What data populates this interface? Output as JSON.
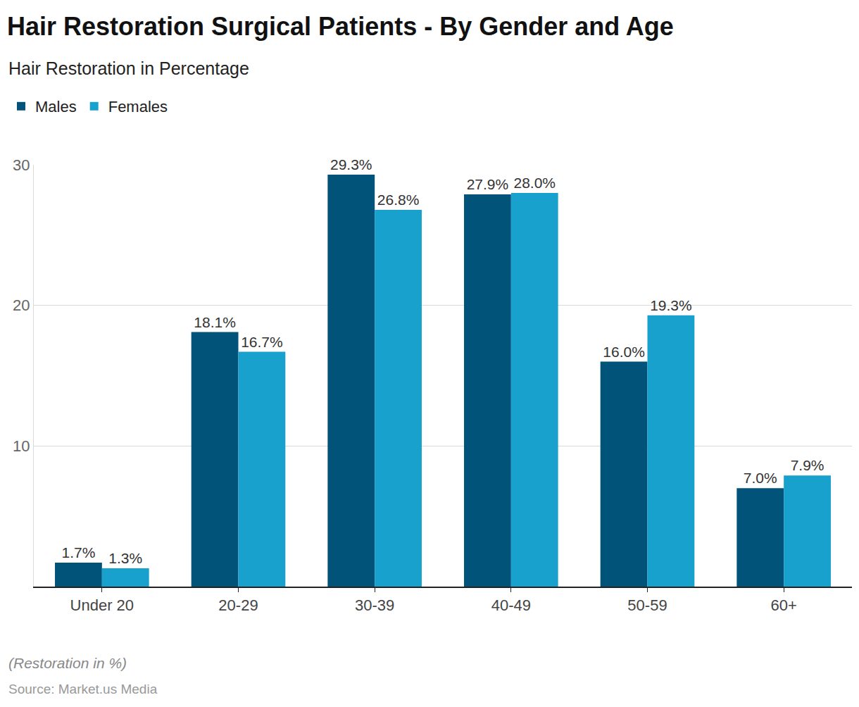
{
  "chart_data": {
    "type": "bar",
    "title": "Hair Restoration Surgical Patients - By Gender and Age",
    "subtitle": "Hair Restoration in Percentage",
    "caption": "(Restoration in %)",
    "source": "Source: Market.us Media",
    "categories": [
      "Under 20",
      "20-29",
      "30-39",
      "40-49",
      "50-59",
      "60+"
    ],
    "series": [
      {
        "name": "Males",
        "color": "#01537a",
        "values": [
          1.7,
          18.1,
          29.3,
          27.9,
          16.0,
          7.0
        ],
        "value_labels": [
          "1.7%",
          "18.1%",
          "29.3%",
          "27.9%",
          "16.0%",
          "7.0%"
        ]
      },
      {
        "name": "Females",
        "color": "#18a1cd",
        "values": [
          1.3,
          16.7,
          26.8,
          28.0,
          19.3,
          7.9
        ],
        "value_labels": [
          "1.3%",
          "16.7%",
          "26.8%",
          "28.0%",
          "19.3%",
          "7.9%"
        ]
      }
    ],
    "ylim": [
      0,
      30
    ],
    "yticks": [
      10,
      20,
      30
    ],
    "grid": true,
    "legend": "top-left",
    "data_labels": true
  }
}
